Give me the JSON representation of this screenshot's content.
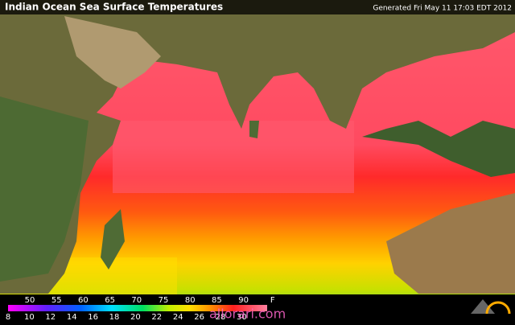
{
  "header": {
    "title": "Indian Ocean Sea Surface Temperatures",
    "generated": "Generated Fri May 11 17:03 EDT 2012"
  },
  "scale": {
    "fahrenheit": [
      "50",
      "55",
      "60",
      "65",
      "70",
      "75",
      "80",
      "85",
      "90"
    ],
    "f_unit": "F",
    "celsius": [
      "8",
      "10",
      "12",
      "14",
      "16",
      "18",
      "20",
      "22",
      "24",
      "26",
      "28",
      "30"
    ]
  },
  "watermark": "allorari.com"
}
